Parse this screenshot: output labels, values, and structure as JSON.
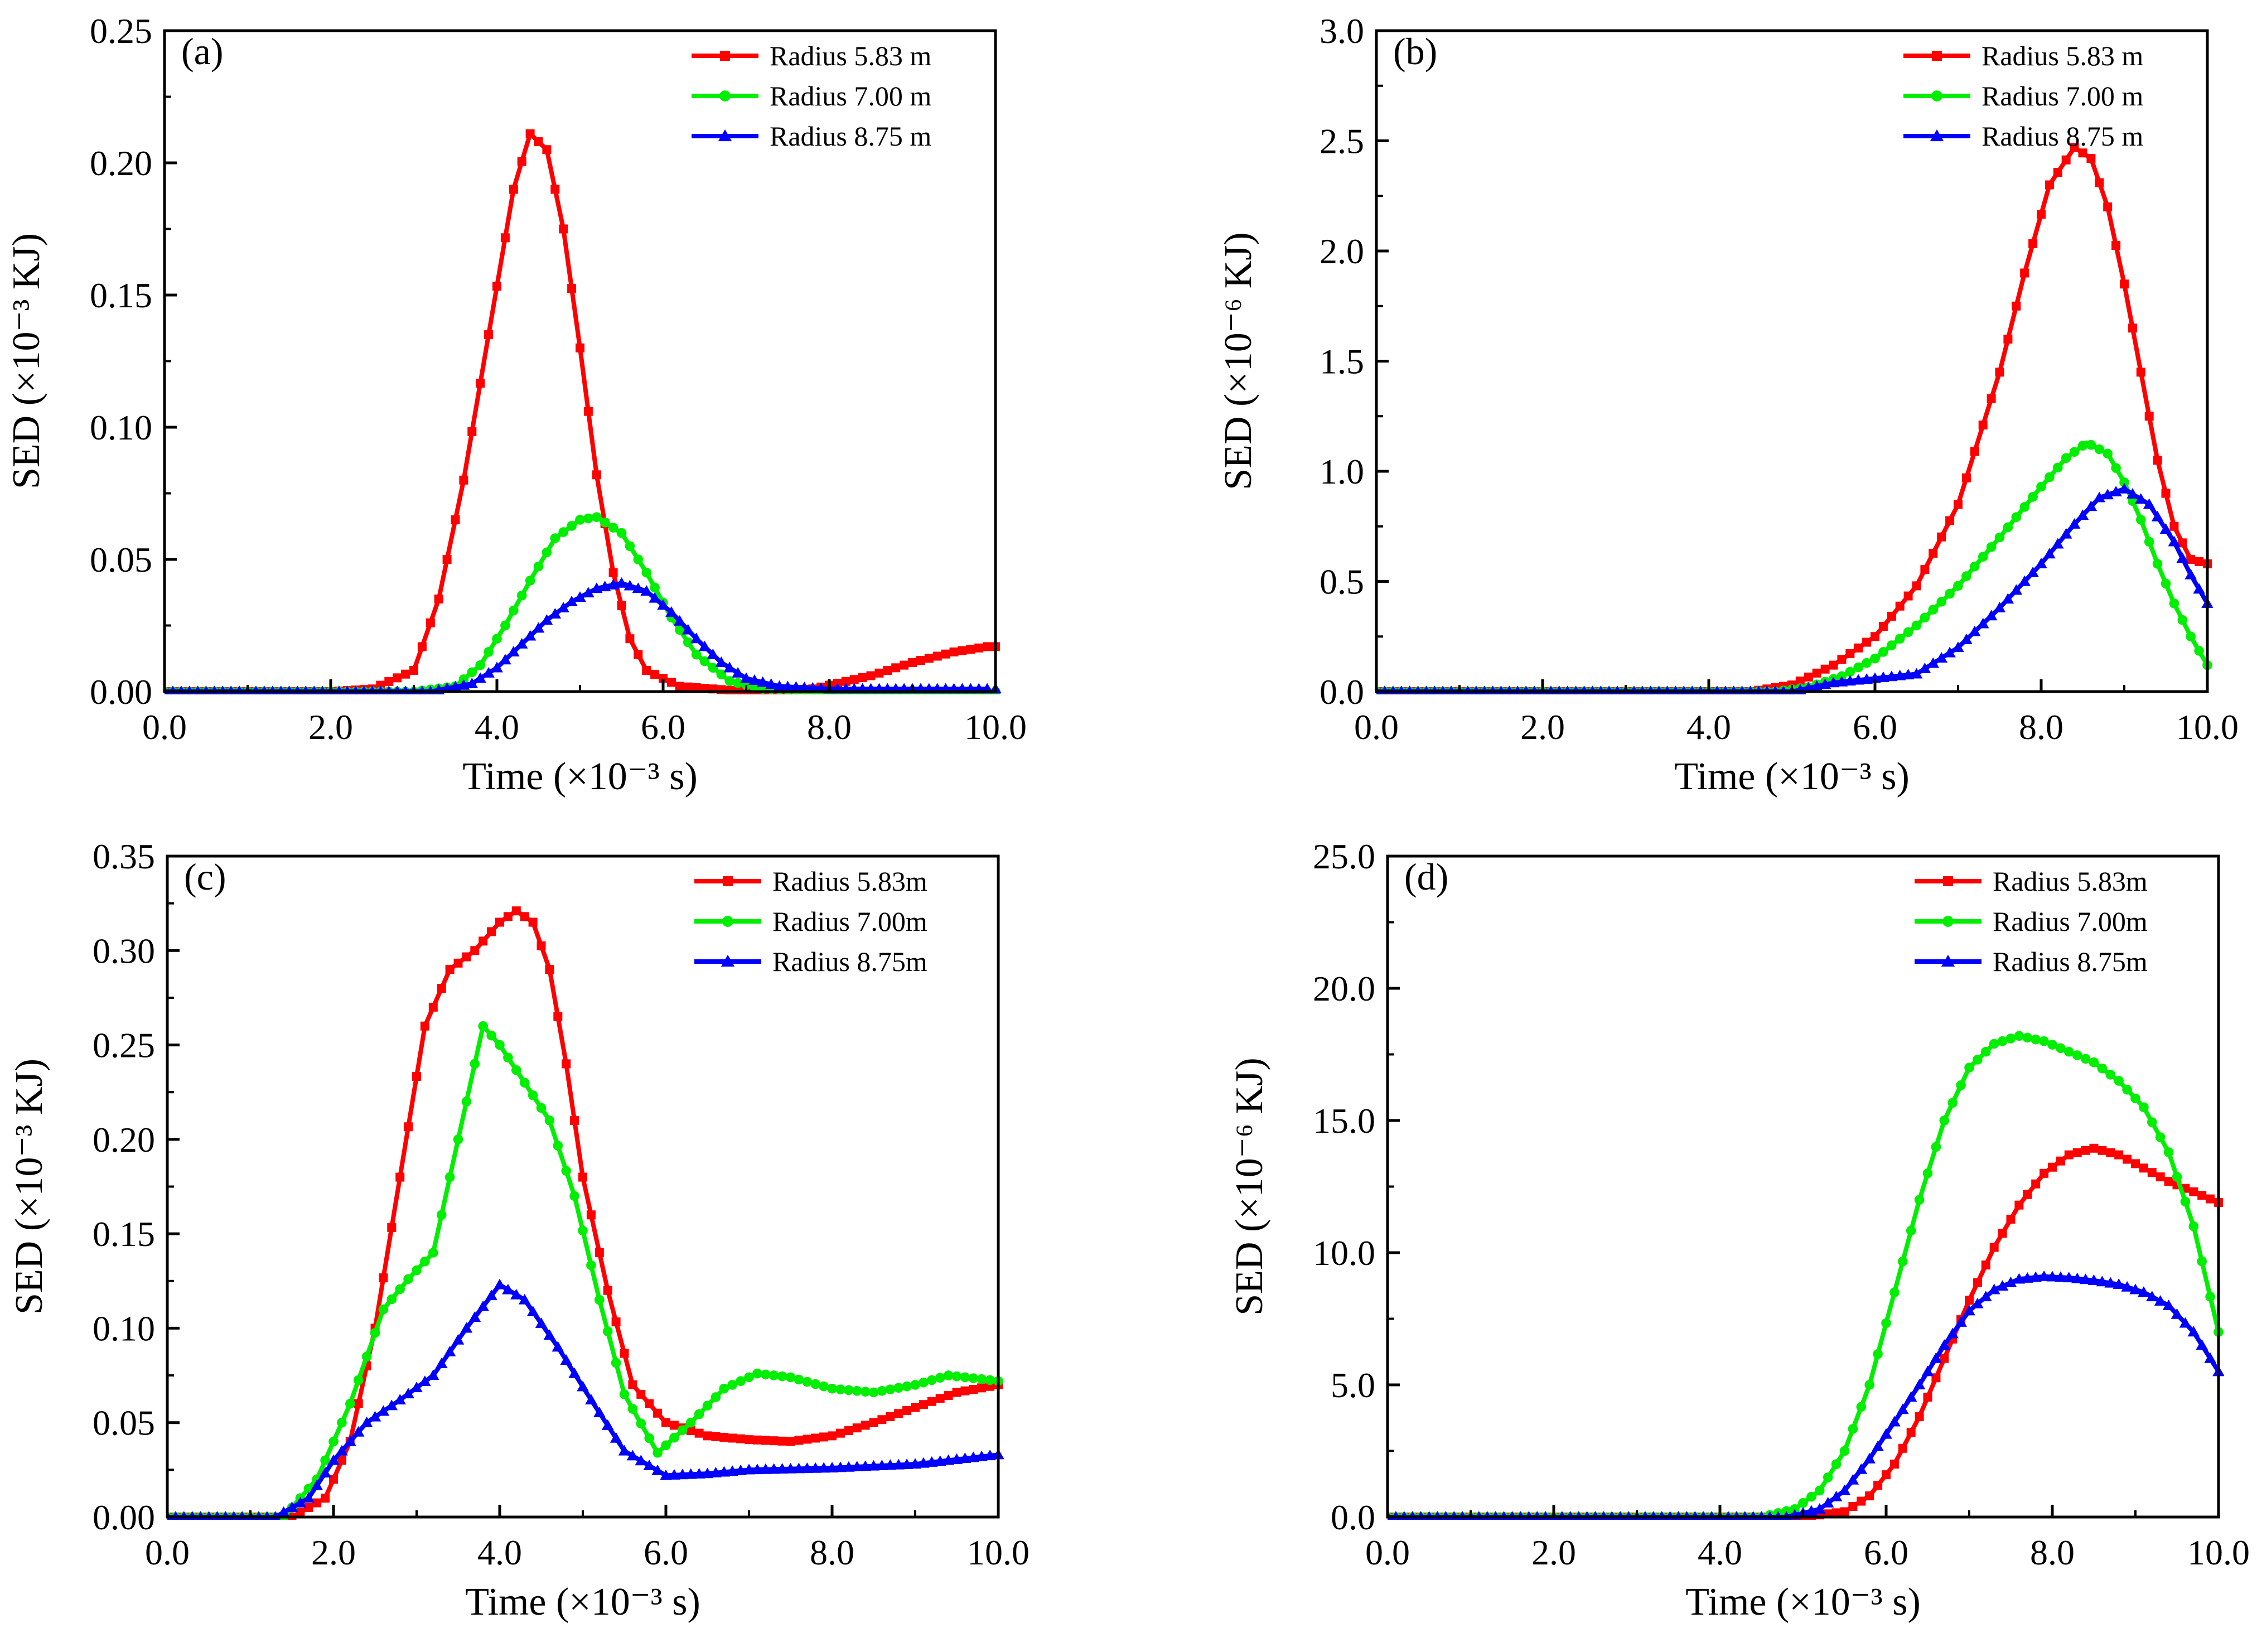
{
  "chart_data": [
    {
      "id": "a",
      "type": "line",
      "label": "(a)",
      "xlabel": "Time (×10⁻³ s)",
      "ylabel": "SED (×10⁻³ KJ)",
      "xlim": [
        0,
        10
      ],
      "ylim": [
        0,
        0.25
      ],
      "xticks": [
        "0.0",
        "2.0",
        "4.0",
        "6.0",
        "8.0",
        "10.0"
      ],
      "yticks": [
        "0.00",
        "0.05",
        "0.10",
        "0.15",
        "0.20",
        "0.25"
      ],
      "legend_position": "top-right",
      "series": [
        {
          "name": "Radius 5.83 m",
          "color": "#ff0000",
          "marker": "square",
          "points": [
            [
              0,
              0
            ],
            [
              2.0,
              0.0
            ],
            [
              2.5,
              0.001
            ],
            [
              3.0,
              0.008
            ],
            [
              3.3,
              0.035
            ],
            [
              3.6,
              0.08
            ],
            [
              3.9,
              0.135
            ],
            [
              4.2,
              0.19
            ],
            [
              4.4,
              0.211
            ],
            [
              4.6,
              0.205
            ],
            [
              4.8,
              0.175
            ],
            [
              5.0,
              0.13
            ],
            [
              5.2,
              0.082
            ],
            [
              5.4,
              0.045
            ],
            [
              5.6,
              0.02
            ],
            [
              5.8,
              0.008
            ],
            [
              6.2,
              0.002
            ],
            [
              7.0,
              0.0
            ],
            [
              7.8,
              0.001
            ],
            [
              8.5,
              0.006
            ],
            [
              9.0,
              0.011
            ],
            [
              9.5,
              0.015
            ],
            [
              9.9,
              0.017
            ]
          ]
        },
        {
          "name": "Radius 7.00 m",
          "color": "#00ee00",
          "marker": "circle",
          "points": [
            [
              0,
              0
            ],
            [
              3.0,
              0.0
            ],
            [
              3.5,
              0.002
            ],
            [
              3.8,
              0.01
            ],
            [
              4.1,
              0.025
            ],
            [
              4.4,
              0.042
            ],
            [
              4.7,
              0.058
            ],
            [
              5.0,
              0.065
            ],
            [
              5.2,
              0.066
            ],
            [
              5.5,
              0.06
            ],
            [
              5.8,
              0.045
            ],
            [
              6.1,
              0.028
            ],
            [
              6.4,
              0.014
            ],
            [
              6.8,
              0.004
            ],
            [
              7.2,
              0.001
            ],
            [
              8.0,
              0.0
            ],
            [
              9.9,
              0.0
            ]
          ]
        },
        {
          "name": "Radius 8.75 m",
          "color": "#0000ff",
          "marker": "triangle",
          "points": [
            [
              0,
              0
            ],
            [
              3.2,
              0.0
            ],
            [
              3.7,
              0.003
            ],
            [
              4.0,
              0.009
            ],
            [
              4.3,
              0.018
            ],
            [
              4.6,
              0.027
            ],
            [
              4.9,
              0.034
            ],
            [
              5.2,
              0.039
            ],
            [
              5.5,
              0.041
            ],
            [
              5.8,
              0.038
            ],
            [
              6.1,
              0.03
            ],
            [
              6.4,
              0.02
            ],
            [
              6.7,
              0.011
            ],
            [
              7.0,
              0.005
            ],
            [
              7.4,
              0.002
            ],
            [
              8.0,
              0.001
            ],
            [
              9.0,
              0.001
            ],
            [
              9.9,
              0.001
            ]
          ]
        }
      ]
    },
    {
      "id": "b",
      "type": "line",
      "label": "(b)",
      "xlabel": "Time (×10⁻³ s)",
      "ylabel": "SED (×10⁻⁶ KJ)",
      "xlim": [
        0,
        10
      ],
      "ylim": [
        0,
        3.0
      ],
      "xticks": [
        "0.0",
        "2.0",
        "4.0",
        "6.0",
        "8.0",
        "10.0"
      ],
      "yticks": [
        "0.0",
        "0.5",
        "1.0",
        "1.5",
        "2.0",
        "2.5",
        "3.0"
      ],
      "legend_position": "top-right",
      "series": [
        {
          "name": "Radius 5.83 m",
          "color": "#ff0000",
          "marker": "square",
          "points": [
            [
              0,
              0
            ],
            [
              4.5,
              0.0
            ],
            [
              5.0,
              0.03
            ],
            [
              5.5,
              0.12
            ],
            [
              6.0,
              0.25
            ],
            [
              6.5,
              0.48
            ],
            [
              7.0,
              0.85
            ],
            [
              7.5,
              1.45
            ],
            [
              7.8,
              1.9
            ],
            [
              8.1,
              2.3
            ],
            [
              8.4,
              2.47
            ],
            [
              8.6,
              2.42
            ],
            [
              8.8,
              2.2
            ],
            [
              9.0,
              1.85
            ],
            [
              9.2,
              1.45
            ],
            [
              9.4,
              1.05
            ],
            [
              9.6,
              0.75
            ],
            [
              9.8,
              0.6
            ],
            [
              10.0,
              0.58
            ]
          ]
        },
        {
          "name": "Radius 7.00 m",
          "color": "#00ee00",
          "marker": "circle",
          "points": [
            [
              0,
              0
            ],
            [
              4.8,
              0.0
            ],
            [
              5.2,
              0.02
            ],
            [
              5.6,
              0.07
            ],
            [
              6.0,
              0.15
            ],
            [
              6.5,
              0.3
            ],
            [
              7.0,
              0.48
            ],
            [
              7.5,
              0.7
            ],
            [
              8.0,
              0.93
            ],
            [
              8.3,
              1.06
            ],
            [
              8.55,
              1.13
            ],
            [
              8.8,
              1.08
            ],
            [
              9.0,
              0.95
            ],
            [
              9.2,
              0.78
            ],
            [
              9.4,
              0.58
            ],
            [
              9.6,
              0.4
            ],
            [
              9.8,
              0.25
            ],
            [
              10.0,
              0.12
            ]
          ]
        },
        {
          "name": "Radius 8.75 m",
          "color": "#0000ff",
          "marker": "triangle",
          "points": [
            [
              0,
              0
            ],
            [
              5.0,
              0.0
            ],
            [
              5.5,
              0.04
            ],
            [
              6.0,
              0.06
            ],
            [
              6.5,
              0.08
            ],
            [
              7.0,
              0.2
            ],
            [
              7.5,
              0.38
            ],
            [
              8.0,
              0.58
            ],
            [
              8.4,
              0.76
            ],
            [
              8.7,
              0.88
            ],
            [
              9.0,
              0.92
            ],
            [
              9.3,
              0.85
            ],
            [
              9.6,
              0.68
            ],
            [
              9.8,
              0.53
            ],
            [
              10.0,
              0.4
            ]
          ]
        }
      ]
    },
    {
      "id": "c",
      "type": "line",
      "label": "(c)",
      "xlabel": "Time (×10⁻³ s)",
      "ylabel": "SED (×10⁻³ KJ)",
      "xlim": [
        0,
        10
      ],
      "ylim": [
        0,
        0.35
      ],
      "xticks": [
        "0.0",
        "2.0",
        "4.0",
        "6.0",
        "8.0",
        "10.0"
      ],
      "yticks": [
        "0.00",
        "0.05",
        "0.10",
        "0.15",
        "0.20",
        "0.25",
        "0.30",
        "0.35"
      ],
      "legend_position": "top-right",
      "series": [
        {
          "name": "Radius 5.83m",
          "color": "#ff0000",
          "marker": "square",
          "points": [
            [
              0,
              0
            ],
            [
              1.5,
              0.0
            ],
            [
              1.9,
              0.01
            ],
            [
              2.2,
              0.04
            ],
            [
              2.5,
              0.1
            ],
            [
              2.8,
              0.18
            ],
            [
              3.1,
              0.26
            ],
            [
              3.4,
              0.29
            ],
            [
              3.7,
              0.3
            ],
            [
              4.0,
              0.315
            ],
            [
              4.2,
              0.321
            ],
            [
              4.4,
              0.315
            ],
            [
              4.6,
              0.29
            ],
            [
              4.8,
              0.24
            ],
            [
              5.0,
              0.18
            ],
            [
              5.3,
              0.12
            ],
            [
              5.6,
              0.07
            ],
            [
              6.0,
              0.05
            ],
            [
              6.5,
              0.043
            ],
            [
              7.0,
              0.041
            ],
            [
              7.5,
              0.04
            ],
            [
              8.0,
              0.043
            ],
            [
              8.5,
              0.05
            ],
            [
              9.0,
              0.058
            ],
            [
              9.5,
              0.066
            ],
            [
              10.0,
              0.07
            ]
          ]
        },
        {
          "name": "Radius 7.00m",
          "color": "#00ee00",
          "marker": "circle",
          "points": [
            [
              0,
              0
            ],
            [
              1.4,
              0.0
            ],
            [
              1.8,
              0.02
            ],
            [
              2.2,
              0.06
            ],
            [
              2.6,
              0.11
            ],
            [
              2.9,
              0.126
            ],
            [
              3.2,
              0.14
            ],
            [
              3.5,
              0.2
            ],
            [
              3.8,
              0.26
            ],
            [
              4.0,
              0.25
            ],
            [
              4.3,
              0.23
            ],
            [
              4.6,
              0.21
            ],
            [
              4.9,
              0.17
            ],
            [
              5.2,
              0.115
            ],
            [
              5.5,
              0.065
            ],
            [
              5.9,
              0.034
            ],
            [
              6.3,
              0.05
            ],
            [
              6.7,
              0.068
            ],
            [
              7.1,
              0.076
            ],
            [
              7.5,
              0.074
            ],
            [
              8.0,
              0.068
            ],
            [
              8.5,
              0.066
            ],
            [
              9.0,
              0.07
            ],
            [
              9.4,
              0.075
            ],
            [
              10.0,
              0.072
            ]
          ]
        },
        {
          "name": "Radius 8.75m",
          "color": "#0000ff",
          "marker": "triangle",
          "points": [
            [
              0,
              0
            ],
            [
              1.3,
              0.0
            ],
            [
              1.7,
              0.01
            ],
            [
              2.0,
              0.03
            ],
            [
              2.4,
              0.05
            ],
            [
              2.8,
              0.062
            ],
            [
              3.2,
              0.075
            ],
            [
              3.6,
              0.1
            ],
            [
              4.0,
              0.123
            ],
            [
              4.3,
              0.115
            ],
            [
              4.7,
              0.09
            ],
            [
              5.1,
              0.062
            ],
            [
              5.5,
              0.035
            ],
            [
              6.0,
              0.022
            ],
            [
              6.5,
              0.023
            ],
            [
              7.0,
              0.025
            ],
            [
              8.0,
              0.026
            ],
            [
              9.0,
              0.028
            ],
            [
              10.0,
              0.033
            ]
          ]
        }
      ]
    },
    {
      "id": "d",
      "type": "line",
      "label": "(d)",
      "xlabel": "Time (×10⁻³ s)",
      "ylabel": "SED (×10⁻⁶ KJ)",
      "xlim": [
        0,
        10
      ],
      "ylim": [
        0,
        25
      ],
      "xticks": [
        "0.0",
        "2.0",
        "4.0",
        "6.0",
        "8.0",
        "10.0"
      ],
      "yticks": [
        "0.0",
        "5.0",
        "10.0",
        "15.0",
        "20.0",
        "25.0"
      ],
      "legend_position": "top-right",
      "series": [
        {
          "name": "Radius 5.83m",
          "color": "#ff0000",
          "marker": "square",
          "points": [
            [
              0,
              0
            ],
            [
              5.0,
              0.0
            ],
            [
              5.5,
              0.2
            ],
            [
              5.8,
              0.8
            ],
            [
              6.1,
              2.0
            ],
            [
              6.4,
              3.8
            ],
            [
              6.7,
              6.0
            ],
            [
              7.0,
              8.2
            ],
            [
              7.3,
              10.2
            ],
            [
              7.6,
              11.8
            ],
            [
              7.9,
              13.0
            ],
            [
              8.2,
              13.7
            ],
            [
              8.5,
              13.95
            ],
            [
              8.8,
              13.7
            ],
            [
              9.1,
              13.2
            ],
            [
              9.4,
              12.7
            ],
            [
              9.7,
              12.3
            ],
            [
              10.0,
              11.9
            ]
          ]
        },
        {
          "name": "Radius 7.00m",
          "color": "#00ee00",
          "marker": "circle",
          "points": [
            [
              0,
              0
            ],
            [
              4.5,
              0.0
            ],
            [
              4.9,
              0.3
            ],
            [
              5.2,
              1.0
            ],
            [
              5.5,
              2.5
            ],
            [
              5.8,
              5.0
            ],
            [
              6.1,
              8.5
            ],
            [
              6.4,
              12.0
            ],
            [
              6.7,
              15.0
            ],
            [
              7.0,
              17.0
            ],
            [
              7.3,
              17.9
            ],
            [
              7.6,
              18.2
            ],
            [
              7.9,
              18.0
            ],
            [
              8.2,
              17.6
            ],
            [
              8.5,
              17.2
            ],
            [
              8.8,
              16.5
            ],
            [
              9.1,
              15.5
            ],
            [
              9.4,
              13.8
            ],
            [
              9.7,
              11.0
            ],
            [
              10.0,
              7.0
            ]
          ]
        },
        {
          "name": "Radius 8.75m",
          "color": "#0000ff",
          "marker": "triangle",
          "points": [
            [
              0,
              0
            ],
            [
              4.8,
              0.0
            ],
            [
              5.2,
              0.3
            ],
            [
              5.5,
              1.0
            ],
            [
              5.8,
              2.2
            ],
            [
              6.1,
              3.6
            ],
            [
              6.4,
              5.0
            ],
            [
              6.7,
              6.5
            ],
            [
              7.0,
              7.8
            ],
            [
              7.3,
              8.6
            ],
            [
              7.6,
              9.0
            ],
            [
              7.9,
              9.1
            ],
            [
              8.2,
              9.05
            ],
            [
              8.5,
              8.95
            ],
            [
              8.8,
              8.8
            ],
            [
              9.1,
              8.5
            ],
            [
              9.4,
              8.0
            ],
            [
              9.7,
              7.0
            ],
            [
              10.0,
              5.5
            ]
          ]
        }
      ]
    }
  ]
}
